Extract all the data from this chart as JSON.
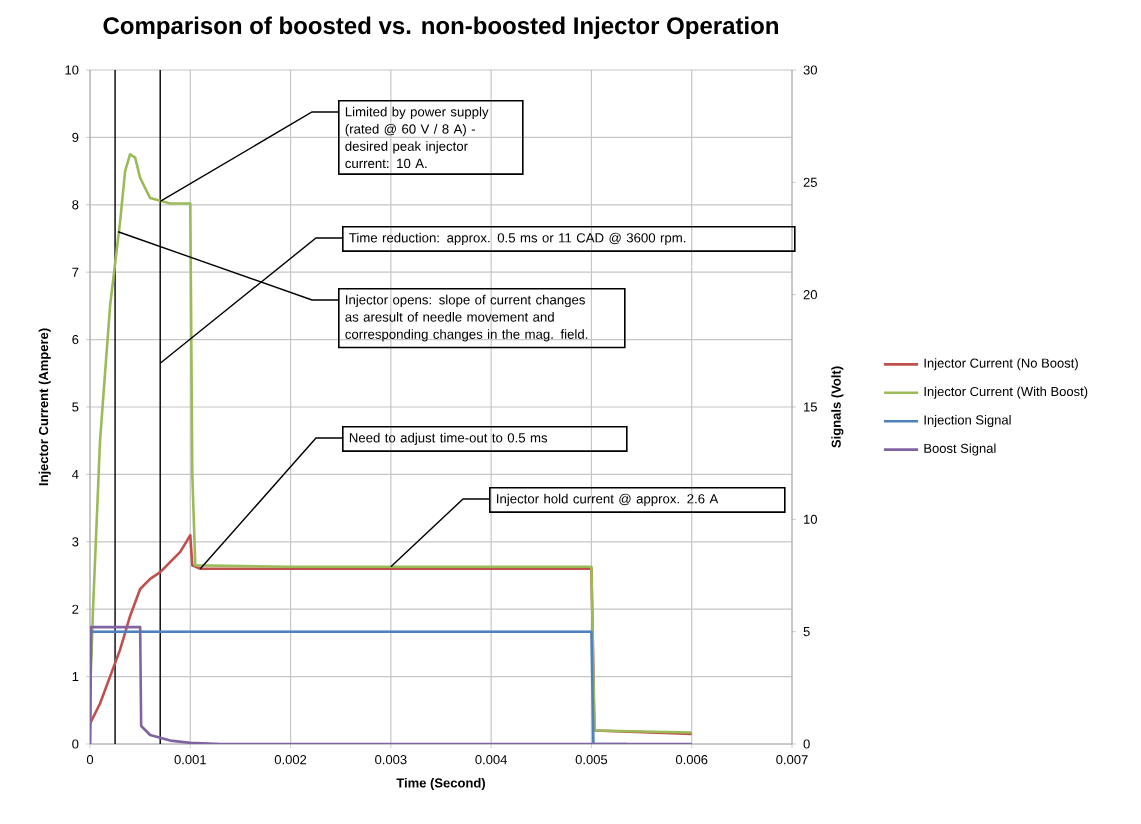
{
  "chart_data": {
    "type": "line",
    "title": "Comparison of boosted vs. non-boosted Injector Operation",
    "xlabel": "Time (Second)",
    "ylabel": "Injector Current (Ampere)",
    "y2label": "Signals (Volt)",
    "xlim": [
      0,
      0.007
    ],
    "xticks": [
      0,
      0.001,
      0.002,
      0.003,
      0.004,
      0.005,
      0.006,
      0.007
    ],
    "ylim": [
      0,
      10
    ],
    "yticks": [
      0,
      1,
      2,
      3,
      4,
      5,
      6,
      7,
      8,
      9,
      10
    ],
    "y2lim": [
      0,
      30
    ],
    "y2ticks": [
      0,
      5,
      10,
      15,
      20,
      25,
      30
    ],
    "grid": true,
    "legend": "right",
    "line_style": "solid",
    "marker": "none",
    "series": [
      {
        "name": "Injector Current (No Boost)",
        "color": "#c0504d",
        "x": [
          0,
          0.0001,
          0.0002,
          0.0003,
          0.0004,
          0.0005,
          0.0006,
          0.0007,
          0.0008,
          0.0009,
          0.001,
          0.00102,
          0.0011,
          0.002,
          0.003,
          0.004,
          0.005,
          0.00503,
          0.006
        ],
        "values": [
          0.3,
          0.6,
          1.0,
          1.4,
          1.9,
          2.3,
          2.45,
          2.55,
          2.7,
          2.85,
          3.1,
          2.65,
          2.6,
          2.6,
          2.6,
          2.6,
          2.6,
          0.2,
          0.15
        ]
      },
      {
        "name": "Injector Current (With Boost)",
        "color": "#9bbb59",
        "x": [
          0,
          3e-05,
          0.0001,
          0.0002,
          0.0003,
          0.00035,
          0.0004,
          0.00045,
          0.0005,
          0.0006,
          0.0008,
          0.001,
          0.00102,
          0.00105,
          0.002,
          0.003,
          0.004,
          0.005,
          0.00503,
          0.006
        ],
        "values": [
          0.7,
          2,
          4.5,
          6.5,
          7.75,
          8.5,
          8.75,
          8.7,
          8.4,
          8.1,
          8.02,
          8.02,
          4,
          2.65,
          2.63,
          2.63,
          2.63,
          2.63,
          0.2,
          0.17
        ]
      },
      {
        "name": "Injection Signal",
        "color": "#4f81bd",
        "axis": "y2",
        "x": [
          0,
          1e-05,
          0.005,
          0.00502,
          0.00535
        ],
        "values": [
          0,
          5,
          5,
          0,
          0
        ]
      },
      {
        "name": "Boost Signal",
        "color": "#8064a2",
        "axis": "y2",
        "x": [
          0,
          1e-05,
          0.0005,
          0.00051,
          0.0006,
          0.0008,
          0.001,
          0.0013,
          0.006
        ],
        "values": [
          0,
          5.2,
          5.2,
          0.8,
          0.4,
          0.15,
          0.05,
          0,
          0
        ]
      }
    ],
    "ref_lines": [
      {
        "axis": "x",
        "value": 0.00025,
        "color": "#000000"
      },
      {
        "axis": "x",
        "value": 0.0007,
        "color": "#000000"
      }
    ],
    "annotations": [
      {
        "text": "Limited by power supply (rated @ 60 V / 8 A) - desired peak injector current: 10 A.",
        "x": 0.0007,
        "y": 8.05
      },
      {
        "text": "Time reduction: approx. 0.5 ms or 11 CAD @ 3600 rpm.",
        "x": 0.0007,
        "y": 5.65
      },
      {
        "text": "Injector opens:  slope of current changes as aresult of needle movement and corresponding changes in the mag. field.",
        "x": 0.00028,
        "y": 7.6
      },
      {
        "text": "Need to adjust time-out to 0.5 ms",
        "x": 0.0011,
        "y": 2.6
      },
      {
        "text": "Injector hold current @ approx. 2.6 A",
        "x": 0.003,
        "y": 2.63
      }
    ]
  }
}
